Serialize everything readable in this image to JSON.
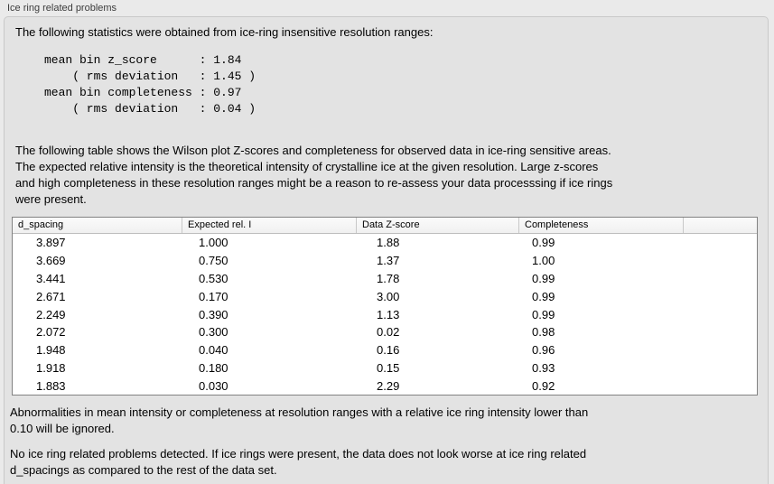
{
  "panel": {
    "title": "Ice ring related problems"
  },
  "intro": {
    "text": "The following statistics were obtained from ice-ring insensitive resolution ranges:",
    "stats_block": "mean bin z_score      : 1.84\n    ( rms deviation   : 1.45 )\nmean bin completeness : 0.97\n    ( rms deviation   : 0.04 )"
  },
  "description": "The following table shows the Wilson plot Z-scores and completeness for observed data in ice-ring sensitive areas.\nThe expected relative intensity is the theoretical intensity of crystalline ice at the given resolution. Large z-scores\nand high completeness in these resolution ranges might be a reason to re-assess your data processsing if ice rings\nwere present.",
  "table": {
    "columns": [
      "d_spacing",
      "Expected rel. I",
      "Data Z-score",
      "Completeness"
    ],
    "rows": [
      [
        "3.897",
        "1.000",
        "1.88",
        "0.99"
      ],
      [
        "3.669",
        "0.750",
        "1.37",
        "1.00"
      ],
      [
        "3.441",
        "0.530",
        "1.78",
        "0.99"
      ],
      [
        "2.671",
        "0.170",
        "3.00",
        "0.99"
      ],
      [
        "2.249",
        "0.390",
        "1.13",
        "0.99"
      ],
      [
        "2.072",
        "0.300",
        "0.02",
        "0.98"
      ],
      [
        "1.948",
        "0.040",
        "0.16",
        "0.96"
      ],
      [
        "1.918",
        "0.180",
        "0.15",
        "0.93"
      ],
      [
        "1.883",
        "0.030",
        "2.29",
        "0.92"
      ]
    ]
  },
  "notes": {
    "ignore_note": "Abnormalities in mean intensity or completeness at resolution ranges with a relative ice ring intensity lower than\n0.10 will be ignored.",
    "conclusion": "No ice ring related problems detected. If ice rings were present, the data does not look worse at ice ring related\nd_spacings as compared to the rest of the data set."
  },
  "colors": {
    "page_bg": "#eaeaea",
    "box_bg": "#e3e3e3",
    "box_border": "#c9c9c9",
    "table_border": "#828282",
    "table_bg": "#ffffff",
    "header_bg": "#f5f5f5",
    "header_separator": "#c8c8c8",
    "text": "#000000",
    "title_text": "#3c3c3c"
  }
}
